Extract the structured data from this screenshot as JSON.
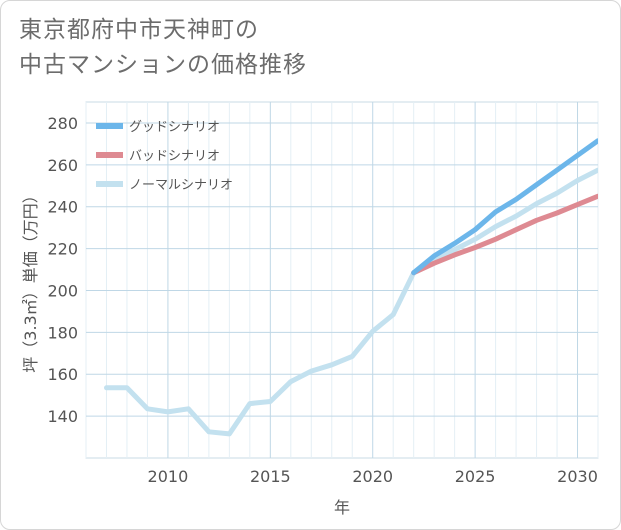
{
  "title_line1": "東京都府中市天神町の",
  "title_line2": "中古マンションの価格推移",
  "chart_data": {
    "type": "line",
    "xlabel": "年",
    "ylabel": "坪（3.3㎡）単価（万円）",
    "xlim": [
      2006,
      2031
    ],
    "ylim": [
      120,
      290
    ],
    "xticks": [
      2010,
      2015,
      2020,
      2025,
      2030
    ],
    "yticks": [
      140,
      160,
      180,
      200,
      220,
      240,
      260,
      280
    ],
    "grid": true,
    "legend_position": "top-left",
    "series": [
      {
        "name": "グッドシナリオ",
        "color": "#6cb6ea",
        "x": [
          2022,
          2023,
          2024,
          2025,
          2026,
          2027,
          2028,
          2029,
          2030,
          2031
        ],
        "values": [
          208.5,
          216.5,
          222.5,
          229,
          237.5,
          243.5,
          250.5,
          257.5,
          264.5,
          271.5
        ]
      },
      {
        "name": "バッドシナリオ",
        "color": "#de8a92",
        "x": [
          2022,
          2023,
          2024,
          2025,
          2026,
          2027,
          2028,
          2029,
          2030,
          2031
        ],
        "values": [
          208.5,
          213,
          217,
          220.5,
          224.5,
          229,
          233.5,
          237,
          241,
          245
        ]
      },
      {
        "name": "ノーマルシナリオ",
        "color": "#c3e1ef",
        "x": [
          2007,
          2008,
          2009,
          2010,
          2011,
          2012,
          2013,
          2014,
          2015,
          2016,
          2017,
          2018,
          2019,
          2020,
          2021,
          2022,
          2023,
          2024,
          2025,
          2026,
          2027,
          2028,
          2029,
          2030,
          2031
        ],
        "values": [
          153.5,
          153.5,
          143.5,
          142,
          143.5,
          132.5,
          131.5,
          146,
          147,
          156.5,
          161.5,
          164.5,
          168.5,
          180.5,
          188.5,
          208.5,
          214.5,
          219.5,
          224.5,
          230.5,
          235.5,
          241.5,
          246.5,
          252.5,
          257.5
        ]
      }
    ]
  }
}
